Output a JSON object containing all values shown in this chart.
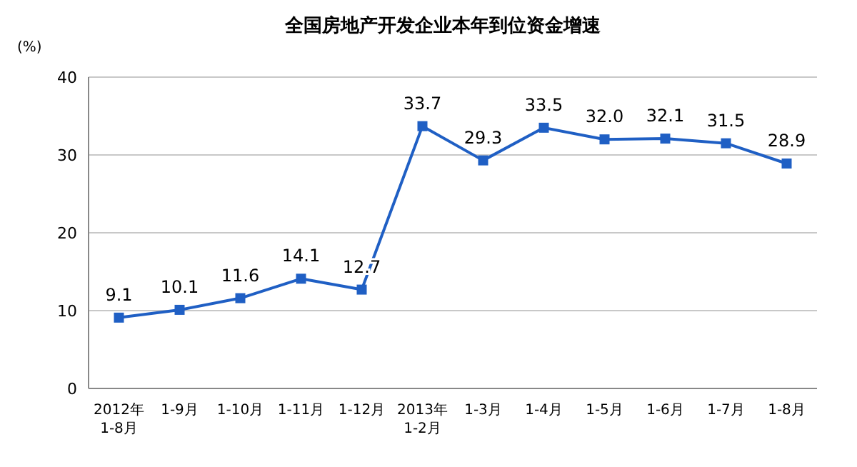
{
  "chart_data": {
    "type": "line",
    "title": "全国房地产开发企业本年到位资金增速",
    "ylabel": "(%)",
    "categories": [
      "2012年\n1-8月",
      "1-9月",
      "1-10月",
      "1-11月",
      "1-12月",
      "2013年\n1-2月",
      "1-3月",
      "1-4月",
      "1-5月",
      "1-6月",
      "1-7月",
      "1-8月"
    ],
    "values": [
      9.1,
      10.1,
      11.6,
      14.1,
      12.7,
      33.7,
      29.3,
      33.5,
      32.0,
      32.1,
      31.5,
      28.9
    ],
    "value_labels": [
      "9.1",
      "10.1",
      "11.6",
      "14.1",
      "12.7",
      "33.7",
      "29.3",
      "33.5",
      "32.0",
      "32.1",
      "31.5",
      "28.9"
    ],
    "color": "#1f5fc4",
    "ylim": [
      0,
      40
    ],
    "yticks": [
      0,
      10,
      20,
      30,
      40
    ],
    "grid": "y",
    "marker": "square",
    "line_style": "solid"
  }
}
